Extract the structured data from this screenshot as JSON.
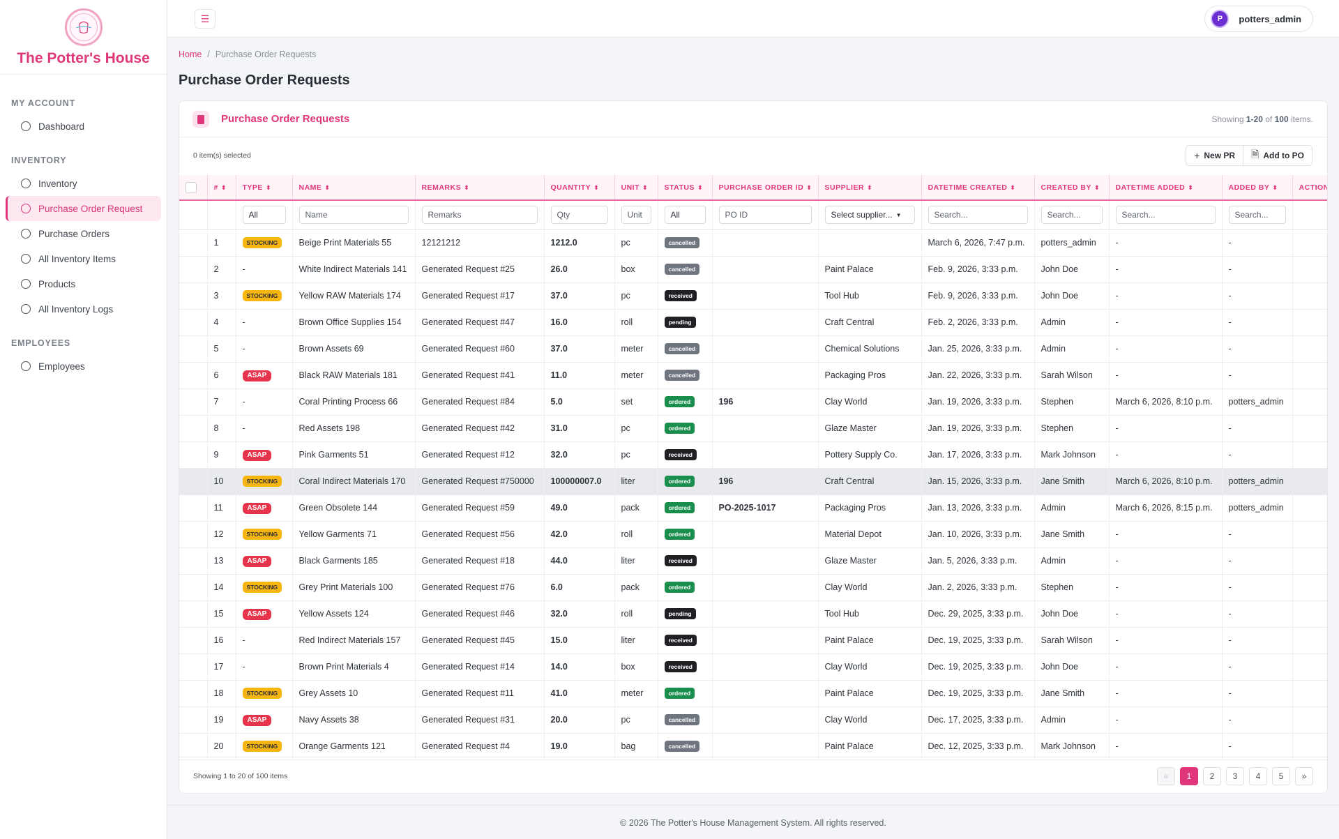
{
  "brand": {
    "name": "The Potter's House"
  },
  "sidebar": {
    "sections": [
      {
        "heading": "MY ACCOUNT",
        "items": [
          {
            "label": "Dashboard",
            "active": false
          }
        ]
      },
      {
        "heading": "INVENTORY",
        "items": [
          {
            "label": "Inventory",
            "active": false
          },
          {
            "label": "Purchase Order Request",
            "active": true
          },
          {
            "label": "Purchase Orders",
            "active": false
          },
          {
            "label": "All Inventory Items",
            "active": false
          },
          {
            "label": "Products",
            "active": false
          },
          {
            "label": "All Inventory Logs",
            "active": false
          }
        ]
      },
      {
        "heading": "EMPLOYEES",
        "items": [
          {
            "label": "Employees",
            "active": false
          }
        ]
      }
    ]
  },
  "topbar": {
    "menu_icon": "hamburger-icon",
    "user": {
      "initial": "P",
      "name": "potters_admin"
    }
  },
  "breadcrumb": {
    "home": "Home",
    "separator": "/",
    "current": "Purchase Order Requests"
  },
  "page": {
    "title": "Purchase Order Requests"
  },
  "card": {
    "title": "Purchase Order Requests",
    "showing_prefix": "Showing",
    "showing_range": "1-20",
    "showing_of": "of",
    "showing_total": "100",
    "showing_suffix": "items.",
    "selected_text": "0 item(s) selected",
    "buttons": {
      "new_pr": "New PR",
      "add_to_po": "Add to PO"
    }
  },
  "table": {
    "columns": [
      "#",
      "TYPE",
      "NAME",
      "REMARKS",
      "QUANTITY",
      "UNIT",
      "STATUS",
      "PURCHASE ORDER ID",
      "SUPPLIER",
      "DATETIME CREATED",
      "CREATED BY",
      "DATETIME ADDED",
      "ADDED BY",
      "ACTION"
    ],
    "filters": {
      "type": "All",
      "name": "Name",
      "remarks": "Remarks",
      "qty": "Qty",
      "unit": "Unit",
      "status": "All",
      "po_id": "PO ID",
      "supplier": "Select supplier...",
      "datetime_created": "Search...",
      "created_by": "Search...",
      "datetime_added": "Search...",
      "added_by": "Search..."
    },
    "rows": [
      {
        "num": "1",
        "type": "STOCKING",
        "name": "Beige Print Materials 55",
        "remarks": "12121212",
        "qty": "1212.0",
        "unit": "pc",
        "status": "cancelled",
        "po": "",
        "supplier": "",
        "created": "March 6, 2026, 7:47 p.m.",
        "created_by": "potters_admin",
        "added": "-",
        "added_by": "-"
      },
      {
        "num": "2",
        "type": "-",
        "name": "White Indirect Materials 141",
        "remarks": "Generated Request #25",
        "qty": "26.0",
        "unit": "box",
        "status": "cancelled",
        "po": "",
        "supplier": "Paint Palace",
        "created": "Feb. 9, 2026, 3:33 p.m.",
        "created_by": "John Doe",
        "added": "-",
        "added_by": "-"
      },
      {
        "num": "3",
        "type": "STOCKING",
        "name": "Yellow RAW Materials 174",
        "remarks": "Generated Request #17",
        "qty": "37.0",
        "unit": "pc",
        "status": "received",
        "po": "",
        "supplier": "Tool Hub",
        "created": "Feb. 9, 2026, 3:33 p.m.",
        "created_by": "John Doe",
        "added": "-",
        "added_by": "-"
      },
      {
        "num": "4",
        "type": "-",
        "name": "Brown Office Supplies 154",
        "remarks": "Generated Request #47",
        "qty": "16.0",
        "unit": "roll",
        "status": "pending",
        "po": "",
        "supplier": "Craft Central",
        "created": "Feb. 2, 2026, 3:33 p.m.",
        "created_by": "Admin",
        "added": "-",
        "added_by": "-"
      },
      {
        "num": "5",
        "type": "-",
        "name": "Brown Assets 69",
        "remarks": "Generated Request #60",
        "qty": "37.0",
        "unit": "meter",
        "status": "cancelled",
        "po": "",
        "supplier": "Chemical Solutions",
        "created": "Jan. 25, 2026, 3:33 p.m.",
        "created_by": "Admin",
        "added": "-",
        "added_by": "-"
      },
      {
        "num": "6",
        "type": "ASAP",
        "name": "Black RAW Materials 181",
        "remarks": "Generated Request #41",
        "qty": "11.0",
        "unit": "meter",
        "status": "cancelled",
        "po": "",
        "supplier": "Packaging Pros",
        "created": "Jan. 22, 2026, 3:33 p.m.",
        "created_by": "Sarah Wilson",
        "added": "-",
        "added_by": "-"
      },
      {
        "num": "7",
        "type": "-",
        "name": "Coral Printing Process 66",
        "remarks": "Generated Request #84",
        "qty": "5.0",
        "unit": "set",
        "status": "ordered",
        "po": "196",
        "supplier": "Clay World",
        "created": "Jan. 19, 2026, 3:33 p.m.",
        "created_by": "Stephen",
        "added": "March 6, 2026, 8:10 p.m.",
        "added_by": "potters_admin"
      },
      {
        "num": "8",
        "type": "-",
        "name": "Red Assets 198",
        "remarks": "Generated Request #42",
        "qty": "31.0",
        "unit": "pc",
        "status": "ordered",
        "po": "",
        "supplier": "Glaze Master",
        "created": "Jan. 19, 2026, 3:33 p.m.",
        "created_by": "Stephen",
        "added": "-",
        "added_by": "-"
      },
      {
        "num": "9",
        "type": "ASAP",
        "name": "Pink Garments 51",
        "remarks": "Generated Request #12",
        "qty": "32.0",
        "unit": "pc",
        "status": "received",
        "po": "",
        "supplier": "Pottery Supply Co.",
        "created": "Jan. 17, 2026, 3:33 p.m.",
        "created_by": "Mark Johnson",
        "added": "-",
        "added_by": "-"
      },
      {
        "num": "10",
        "type": "STOCKING",
        "name": "Coral Indirect Materials 170",
        "remarks": "Generated Request #750000",
        "qty": "100000007.0",
        "unit": "liter",
        "status": "ordered",
        "po": "196",
        "supplier": "Craft Central",
        "created": "Jan. 15, 2026, 3:33 p.m.",
        "created_by": "Jane Smith",
        "added": "March 6, 2026, 8:10 p.m.",
        "added_by": "potters_admin"
      },
      {
        "num": "11",
        "type": "ASAP",
        "name": "Green Obsolete 144",
        "remarks": "Generated Request #59",
        "qty": "49.0",
        "unit": "pack",
        "status": "ordered",
        "po": "PO-2025-1017",
        "supplier": "Packaging Pros",
        "created": "Jan. 13, 2026, 3:33 p.m.",
        "created_by": "Admin",
        "added": "March 6, 2026, 8:15 p.m.",
        "added_by": "potters_admin"
      },
      {
        "num": "12",
        "type": "STOCKING",
        "name": "Yellow Garments 71",
        "remarks": "Generated Request #56",
        "qty": "42.0",
        "unit": "roll",
        "status": "ordered",
        "po": "",
        "supplier": "Material Depot",
        "created": "Jan. 10, 2026, 3:33 p.m.",
        "created_by": "Jane Smith",
        "added": "-",
        "added_by": "-"
      },
      {
        "num": "13",
        "type": "ASAP",
        "name": "Black Garments 185",
        "remarks": "Generated Request #18",
        "qty": "44.0",
        "unit": "liter",
        "status": "received",
        "po": "",
        "supplier": "Glaze Master",
        "created": "Jan. 5, 2026, 3:33 p.m.",
        "created_by": "Admin",
        "added": "-",
        "added_by": "-"
      },
      {
        "num": "14",
        "type": "STOCKING",
        "name": "Grey Print Materials 100",
        "remarks": "Generated Request #76",
        "qty": "6.0",
        "unit": "pack",
        "status": "ordered",
        "po": "",
        "supplier": "Clay World",
        "created": "Jan. 2, 2026, 3:33 p.m.",
        "created_by": "Stephen",
        "added": "-",
        "added_by": "-"
      },
      {
        "num": "15",
        "type": "ASAP",
        "name": "Yellow Assets 124",
        "remarks": "Generated Request #46",
        "qty": "32.0",
        "unit": "roll",
        "status": "pending",
        "po": "",
        "supplier": "Tool Hub",
        "created": "Dec. 29, 2025, 3:33 p.m.",
        "created_by": "John Doe",
        "added": "-",
        "added_by": "-"
      },
      {
        "num": "16",
        "type": "-",
        "name": "Red Indirect Materials 157",
        "remarks": "Generated Request #45",
        "qty": "15.0",
        "unit": "liter",
        "status": "received",
        "po": "",
        "supplier": "Paint Palace",
        "created": "Dec. 19, 2025, 3:33 p.m.",
        "created_by": "Sarah Wilson",
        "added": "-",
        "added_by": "-"
      },
      {
        "num": "17",
        "type": "-",
        "name": "Brown Print Materials 4",
        "remarks": "Generated Request #14",
        "qty": "14.0",
        "unit": "box",
        "status": "received",
        "po": "",
        "supplier": "Clay World",
        "created": "Dec. 19, 2025, 3:33 p.m.",
        "created_by": "John Doe",
        "added": "-",
        "added_by": "-"
      },
      {
        "num": "18",
        "type": "STOCKING",
        "name": "Grey Assets 10",
        "remarks": "Generated Request #11",
        "qty": "41.0",
        "unit": "meter",
        "status": "ordered",
        "po": "",
        "supplier": "Paint Palace",
        "created": "Dec. 19, 2025, 3:33 p.m.",
        "created_by": "Jane Smith",
        "added": "-",
        "added_by": "-"
      },
      {
        "num": "19",
        "type": "ASAP",
        "name": "Navy Assets 38",
        "remarks": "Generated Request #31",
        "qty": "20.0",
        "unit": "pc",
        "status": "cancelled",
        "po": "",
        "supplier": "Clay World",
        "created": "Dec. 17, 2025, 3:33 p.m.",
        "created_by": "Admin",
        "added": "-",
        "added_by": "-"
      },
      {
        "num": "20",
        "type": "STOCKING",
        "name": "Orange Garments 121",
        "remarks": "Generated Request #4",
        "qty": "19.0",
        "unit": "bag",
        "status": "cancelled",
        "po": "",
        "supplier": "Paint Palace",
        "created": "Dec. 12, 2025, 3:33 p.m.",
        "created_by": "Mark Johnson",
        "added": "-",
        "added_by": "-"
      }
    ]
  },
  "footer_card": {
    "showing": "Showing 1 to 20 of 100 items"
  },
  "pagination": {
    "prev": "«",
    "pages": [
      "1",
      "2",
      "3",
      "4",
      "5"
    ],
    "next": "»",
    "current": "1"
  },
  "footer": {
    "text": "© 2026 The Potter's House Management System. All rights reserved."
  }
}
